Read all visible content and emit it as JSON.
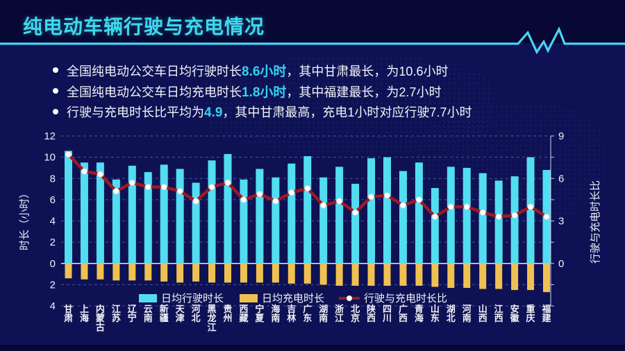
{
  "header": {
    "title": "纯电动车辆行驶与充电情况"
  },
  "bullets": [
    {
      "pre": "全国纯电动公交车日均行驶时长",
      "highlight": "8.6小时",
      "post": "，其中甘肃最长，为10.6小时"
    },
    {
      "pre": "全国纯电动公交车日均充电时长",
      "highlight": "1.8小时",
      "post": "，其中福建最长，为2.7小时"
    },
    {
      "pre": "行驶与充电时长比平均为",
      "highlight": "4.9",
      "post": "，其中甘肃最高，充电1小时对应行驶7.7小时"
    }
  ],
  "chart_data": {
    "type": "bar",
    "subtype": "combo-bar-line-dual-axis",
    "categories": [
      "甘肃",
      "上海",
      "内蒙古",
      "江苏",
      "辽宁",
      "云南",
      "新疆",
      "天津",
      "河北",
      "黑龙江",
      "贵州",
      "西藏",
      "宁夏",
      "海南",
      "吉林",
      "广东",
      "湖南",
      "浙江",
      "北京",
      "陕西",
      "四川",
      "广西",
      "青海",
      "山东",
      "湖北",
      "河南",
      "山西",
      "江西",
      "安徽",
      "重庆",
      "福建"
    ],
    "series": [
      {
        "name": "日均行驶时长",
        "type": "bar",
        "axis": "left",
        "direction": "up",
        "color": "#52ddf2",
        "values": [
          10.6,
          9.5,
          9.5,
          7.9,
          9.2,
          8.6,
          9.3,
          8.9,
          7.6,
          9.7,
          10.3,
          7.9,
          8.9,
          8.1,
          9.4,
          10.1,
          8.1,
          9.1,
          7.5,
          9.9,
          10.0,
          8.7,
          9.5,
          7.1,
          9.1,
          9.0,
          8.5,
          7.8,
          8.2,
          10.0,
          8.8
        ]
      },
      {
        "name": "日均充电时长",
        "type": "bar",
        "axis": "left",
        "direction": "down",
        "color": "#efc153",
        "values": [
          1.4,
          1.5,
          1.5,
          1.6,
          1.6,
          1.6,
          1.7,
          1.8,
          1.7,
          1.8,
          1.8,
          1.8,
          1.8,
          1.8,
          1.9,
          1.9,
          2.0,
          2.1,
          2.1,
          2.1,
          2.1,
          2.1,
          2.1,
          2.2,
          2.3,
          2.3,
          2.4,
          2.4,
          2.5,
          2.5,
          2.7
        ]
      },
      {
        "name": "行驶与充电时长比",
        "type": "line",
        "axis": "right",
        "color": "#9c1a20",
        "marker_color": "#ffffff",
        "values": [
          7.7,
          6.5,
          6.3,
          5.1,
          5.7,
          5.4,
          5.4,
          5.1,
          4.4,
          5.4,
          5.7,
          4.5,
          4.9,
          4.4,
          5.0,
          5.3,
          4.1,
          4.4,
          3.6,
          4.7,
          4.8,
          4.1,
          4.5,
          3.3,
          4.0,
          4.0,
          3.6,
          3.3,
          3.4,
          4.0,
          3.3
        ]
      }
    ],
    "left_axis": {
      "title": "时长（小时）",
      "range": [
        -4,
        12
      ],
      "tick_values": [
        12,
        10,
        8,
        6,
        4,
        2,
        0,
        -2,
        -4
      ],
      "tick_labels": [
        "12",
        "10",
        "8",
        "6",
        "4",
        "2",
        "0",
        "2",
        "4"
      ]
    },
    "right_axis": {
      "title": "行驶与充电时长比",
      "range": [
        -3,
        9
      ],
      "tick_values": [
        9,
        6,
        3,
        0
      ],
      "tick_labels": [
        "9",
        "6",
        "3",
        "0"
      ]
    },
    "grid": "dashed-horizontal",
    "legend_position": "bottom-inside"
  },
  "colors": {
    "slide_bg": "#0e1254",
    "header_bg": "#070833",
    "title_accent": "#3ed9ee",
    "highlight": "#35d2f0",
    "bar_driving": "#52ddf2",
    "bar_charging": "#efc153",
    "ratio_line": "#9c1a20",
    "grid_line": "#8296d7",
    "zero_line": "#e8ecf5",
    "text": "#f2f3f7"
  }
}
